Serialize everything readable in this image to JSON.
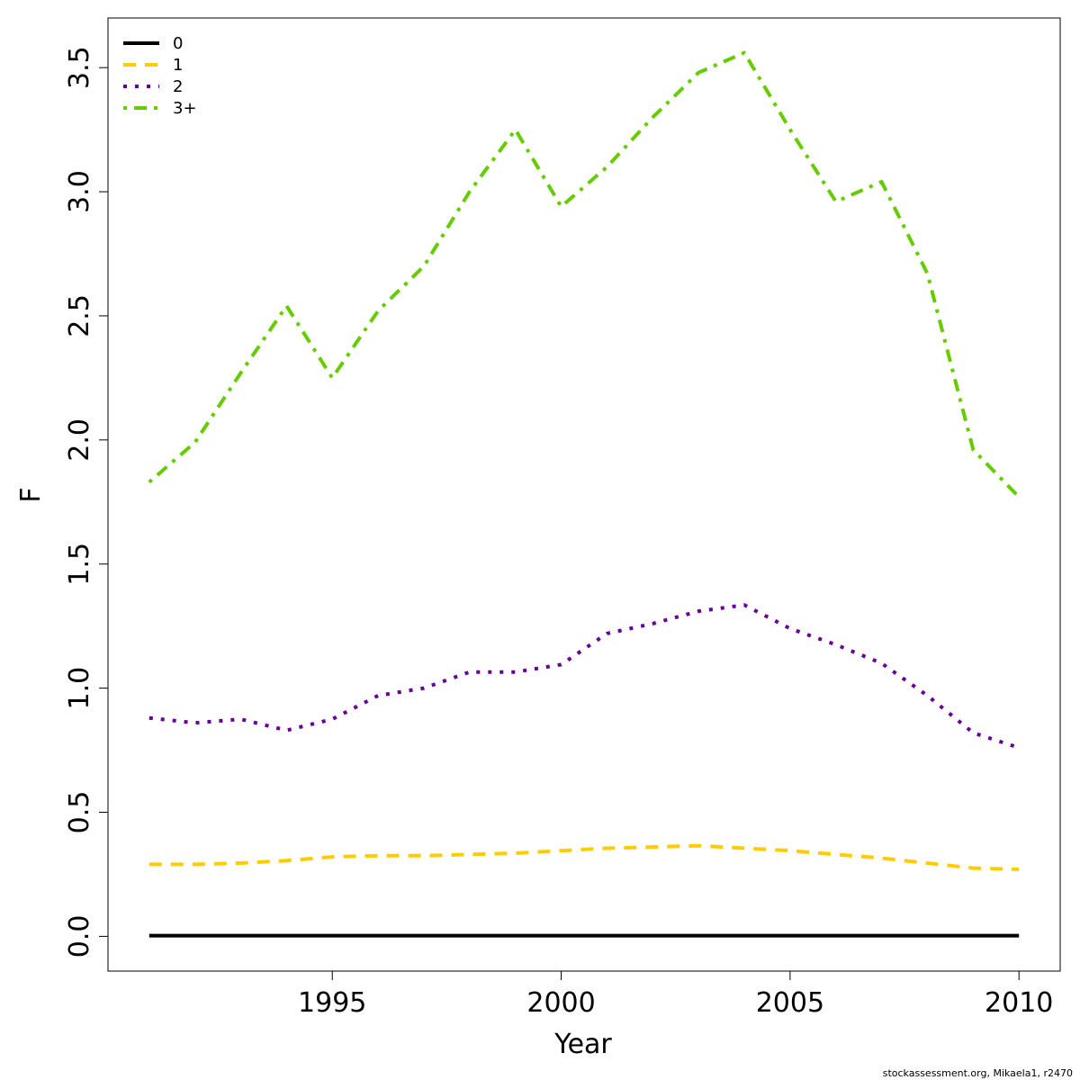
{
  "chart_data": {
    "type": "line",
    "xlabel": "Year",
    "ylabel": "F",
    "xlim": [
      1990.1,
      2010.9
    ],
    "ylim": [
      -0.14,
      3.7
    ],
    "x_ticks": [
      1995,
      2000,
      2005,
      2010
    ],
    "y_ticks": [
      0.0,
      0.5,
      1.0,
      1.5,
      2.0,
      2.5,
      3.0,
      3.5
    ],
    "y_tick_labels": [
      "0.0",
      "0.5",
      "1.0",
      "1.5",
      "2.0",
      "2.5",
      "3.0",
      "3.5"
    ],
    "x_tick_labels": [
      "1995",
      "2000",
      "2005",
      "2010"
    ],
    "legend_position": "top-left",
    "grid": false,
    "x": [
      1991,
      1992,
      1993,
      1994,
      1995,
      1996,
      1997,
      1998,
      1999,
      2000,
      2001,
      2002,
      2003,
      2004,
      2005,
      2006,
      2007,
      2008,
      2009,
      2010
    ],
    "series": [
      {
        "name": "0",
        "color": "#000000",
        "dash": "solid",
        "values": [
          0.003,
          0.003,
          0.003,
          0.003,
          0.003,
          0.003,
          0.003,
          0.003,
          0.003,
          0.003,
          0.003,
          0.003,
          0.003,
          0.003,
          0.003,
          0.003,
          0.003,
          0.003,
          0.003,
          0.003
        ]
      },
      {
        "name": "1",
        "color": "#ffcc00",
        "dash": "dashed",
        "values": [
          0.29,
          0.29,
          0.295,
          0.305,
          0.32,
          0.325,
          0.325,
          0.33,
          0.335,
          0.345,
          0.355,
          0.36,
          0.365,
          0.355,
          0.345,
          0.33,
          0.315,
          0.295,
          0.275,
          0.27
        ]
      },
      {
        "name": "2",
        "color": "#660099",
        "dash": "dotted",
        "values": [
          0.88,
          0.86,
          0.875,
          0.83,
          0.875,
          0.97,
          1.0,
          1.065,
          1.065,
          1.095,
          1.22,
          1.26,
          1.31,
          1.335,
          1.24,
          1.175,
          1.1,
          0.97,
          0.82,
          0.76
        ]
      },
      {
        "name": "3+",
        "color": "#66cc00",
        "dash": "dashdot",
        "values": [
          1.83,
          1.99,
          2.27,
          2.54,
          2.25,
          2.52,
          2.7,
          3.0,
          3.25,
          2.94,
          3.1,
          3.3,
          3.48,
          3.56,
          3.25,
          2.96,
          3.04,
          2.67,
          1.96,
          1.77
        ]
      }
    ]
  },
  "credit": "stockassessment.org, Mikaela1, r2470"
}
